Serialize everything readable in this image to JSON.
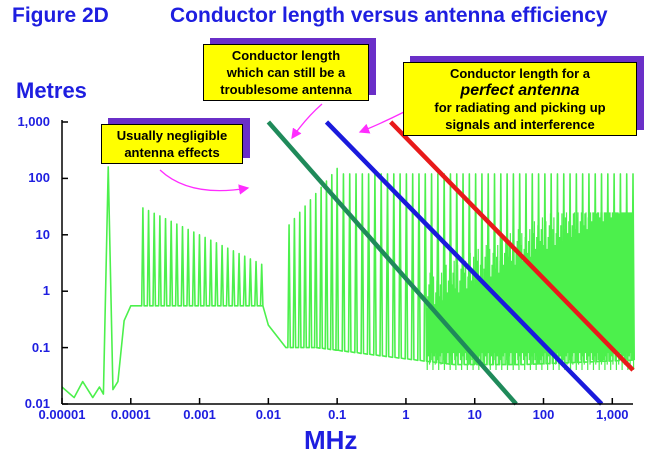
{
  "figure_label": "Figure 2D",
  "callouts": {
    "troublesome": [
      "Conductor length",
      "which can still be a",
      "troublesome antenna"
    ],
    "perfect": {
      "line1": "Conductor length for a",
      "emphasis": "perfect antenna",
      "line3": "for radiating and picking up",
      "line4": "signals and interference"
    },
    "negligible": [
      "Usually negligible",
      "antenna effects"
    ]
  },
  "colors": {
    "text": "#1e1ee0",
    "noise": "#4cf04c",
    "negligible_line": "#1f8a5a",
    "troublesome_line": "#1a1adc",
    "perfect_line": "#e81a1a",
    "callout_bg": "#ffff00",
    "callout_shadow": "#6a2fc8",
    "arrow": "#ff2cff"
  },
  "chart_data": {
    "type": "line",
    "title": "Conductor length versus antenna efficiency",
    "xlabel": "MHz",
    "ylabel": "Metres",
    "xscale": "log",
    "yscale": "log",
    "xlim": [
      1e-05,
      2000
    ],
    "ylim": [
      0.01,
      1000
    ],
    "x_ticks": [
      "0.00001",
      "0.0001",
      "0.001",
      "0.01",
      "0.1",
      "1",
      "10",
      "100",
      "1,000"
    ],
    "y_ticks": [
      "1,000",
      "100",
      "10",
      "1",
      "0.1",
      "0.01"
    ],
    "grid": false,
    "series": [
      {
        "name": "Usually negligible antenna effects",
        "x": [
          0.01,
          40
        ],
        "y": [
          1000,
          0.01
        ]
      },
      {
        "name": "Conductor length which can still be a troublesome antenna",
        "x": [
          0.07,
          700
        ],
        "y": [
          1000,
          0.01
        ]
      },
      {
        "name": "Conductor length for a perfect antenna",
        "x": [
          0.6,
          2000
        ],
        "y": [
          1000,
          0.04
        ]
      }
    ],
    "noise_spectrum": {
      "baseline": [
        {
          "x": 1e-05,
          "y": 0.02
        },
        {
          "x": 1.5e-05,
          "y": 0.013
        },
        {
          "x": 2e-05,
          "y": 0.025
        },
        {
          "x": 2.8e-05,
          "y": 0.013
        },
        {
          "x": 3.5e-05,
          "y": 0.02
        },
        {
          "x": 4e-05,
          "y": 0.015
        },
        {
          "x": 4.7e-05,
          "y": 160
        },
        {
          "x": 5.5e-05,
          "y": 0.018
        },
        {
          "x": 6.5e-05,
          "y": 0.025
        },
        {
          "x": 8e-05,
          "y": 0.3
        },
        {
          "x": 0.0001,
          "y": 0.55
        },
        {
          "x": 0.008,
          "y": 0.55
        },
        {
          "x": 0.01,
          "y": 0.25
        },
        {
          "x": 0.018,
          "y": 0.1
        },
        {
          "x": 0.05,
          "y": 0.1
        },
        {
          "x": 0.5,
          "y": 0.07
        },
        {
          "x": 5,
          "y": 0.05
        },
        {
          "x": 50,
          "y": 0.05
        },
        {
          "x": 2000,
          "y": 0.06
        }
      ],
      "spike_groups": [
        {
          "x_start": 0.00015,
          "x_end": 0.008,
          "count": 22,
          "y_start": 30,
          "y_end": 3
        },
        {
          "x_start": 0.02,
          "x_end": 0.1,
          "count": 10,
          "y_start": 15,
          "y_end": 150
        },
        {
          "x_start": 0.1,
          "x_end": 2000,
          "count": 48,
          "y_start": 120,
          "y_end": 120
        }
      ]
    }
  }
}
